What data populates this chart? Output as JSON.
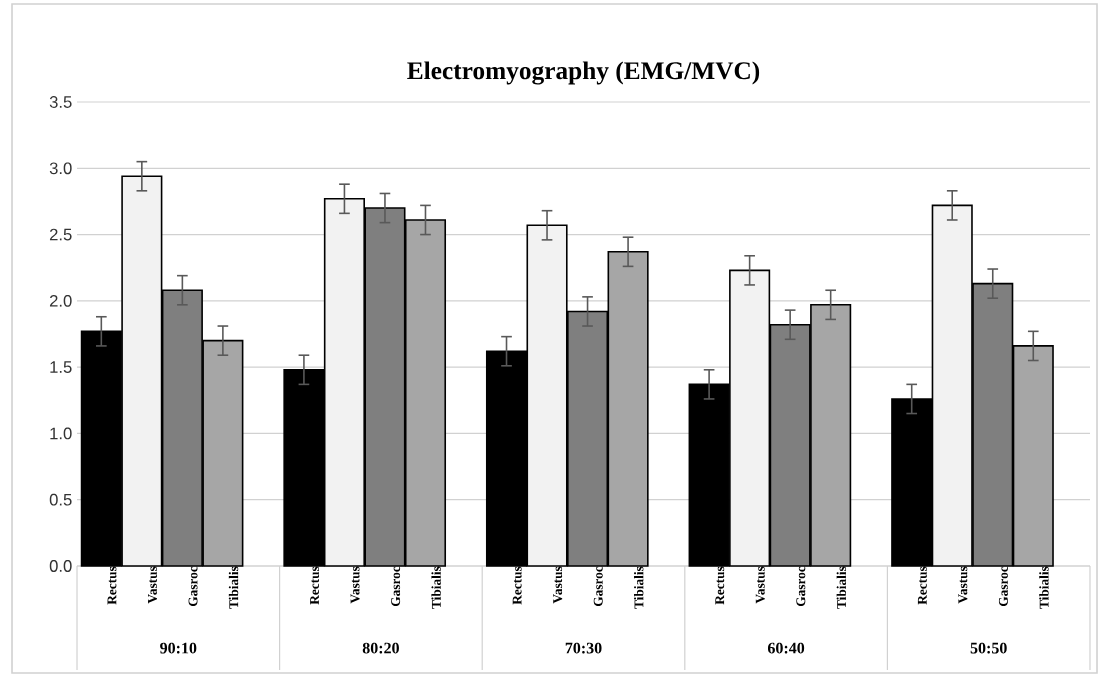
{
  "chart_data": {
    "type": "bar",
    "title": "Electromyography (EMG/MVC)",
    "categories": [
      "90:10",
      "80:20",
      "70:30",
      "60:40",
      "50:50"
    ],
    "series": [
      {
        "name": "Rectus",
        "color": "#000000",
        "values": [
          1.77,
          1.48,
          1.62,
          1.37,
          1.26
        ],
        "errors": [
          0.11,
          0.11,
          0.11,
          0.11,
          0.11
        ]
      },
      {
        "name": "Vastus",
        "color": "#f2f2f2",
        "values": [
          2.94,
          2.77,
          2.57,
          2.23,
          2.72
        ],
        "errors": [
          0.11,
          0.11,
          0.11,
          0.11,
          0.11
        ]
      },
      {
        "name": "Gasroc",
        "color": "#7f7f7f",
        "values": [
          2.08,
          2.7,
          1.92,
          1.82,
          2.13
        ],
        "errors": [
          0.11,
          0.11,
          0.11,
          0.11,
          0.11
        ]
      },
      {
        "name": "Tibialis",
        "color": "#a6a6a6",
        "values": [
          1.7,
          2.61,
          2.37,
          1.97,
          1.66
        ],
        "errors": [
          0.11,
          0.11,
          0.11,
          0.11,
          0.11
        ]
      }
    ],
    "ylim": [
      0,
      3.5
    ],
    "yticks": [
      {
        "value": 0,
        "label": "0.0"
      },
      {
        "value": 0.5,
        "label": "0.5"
      },
      {
        "value": 1,
        "label": "1.0"
      },
      {
        "value": 1.5,
        "label": "1.5"
      },
      {
        "value": 2,
        "label": "2.0"
      },
      {
        "value": 2.5,
        "label": "2.5"
      },
      {
        "value": 3,
        "label": "3.0"
      },
      {
        "value": 3.5,
        "label": "3.5"
      }
    ],
    "grid": "y",
    "legend": "bottom"
  }
}
